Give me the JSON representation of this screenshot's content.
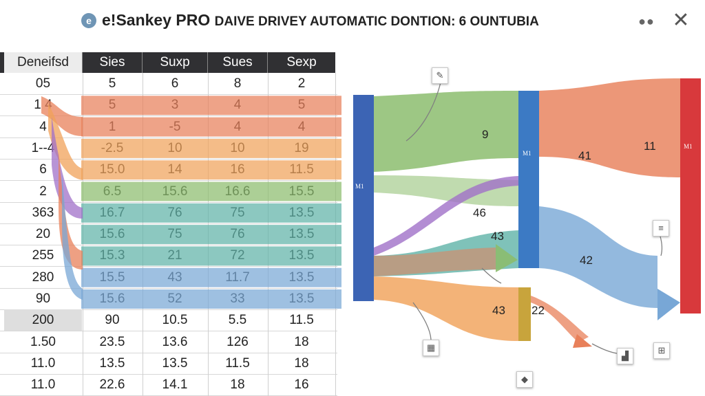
{
  "window": {
    "logo_letter": "e",
    "title": "e!Sankey PRO",
    "subtitle": "DAIVE DRIVEY AUTOMATIC  DONTION: 6 OUNTUBIA",
    "more_icon": "more-horizontal-icon",
    "close_icon": "close-icon"
  },
  "table": {
    "headers": [
      "Deneifsd",
      "Sies",
      "Suxp",
      "Sues",
      "Sexp"
    ],
    "rows": [
      [
        "05",
        "5",
        "6",
        "8",
        "2"
      ],
      [
        "1 4",
        "5",
        "3",
        "4",
        "5"
      ],
      [
        "4",
        "1",
        "-5",
        "4",
        "4"
      ],
      [
        "1--4",
        "-2.5",
        "10",
        "10",
        "19"
      ],
      [
        "6",
        "15.0",
        "14",
        "16",
        "11.5"
      ],
      [
        "2",
        "6.5",
        "15.6",
        "16.6",
        "15.5"
      ],
      [
        "363",
        "16.7",
        "76",
        "75",
        "13.5"
      ],
      [
        "20",
        "15.6",
        "75",
        "76",
        "13.5"
      ],
      [
        "255",
        "15.3",
        "21",
        "72",
        "13.5"
      ],
      [
        "280",
        "15.5",
        "43",
        "11.7",
        "13.5"
      ],
      [
        "90",
        "15.6",
        "52",
        "33",
        "13.5"
      ],
      [
        "200",
        "90",
        "10.5",
        "5.5",
        "11.5"
      ],
      [
        "1.50",
        "23.5",
        "13.6",
        "126",
        "18"
      ],
      [
        "11.0",
        "13.5",
        "13.5",
        "11.5",
        "18"
      ],
      [
        "11.0",
        "22.6",
        "14.1",
        "18",
        "16"
      ]
    ],
    "selected_row": 11
  },
  "sankey": {
    "flow_labels": [
      "9",
      "41",
      "11",
      "46",
      "43",
      "42",
      "43",
      "22"
    ],
    "node_labels": [
      "M1",
      "M1",
      "M1"
    ],
    "band_colors": [
      "#e8805a",
      "#f0a25a",
      "#8cbd6e",
      "#5fb3a8",
      "#78a7d6",
      "#a070c8"
    ],
    "icons": [
      "pencil-tool-icon",
      "list-icon",
      "grid-icon",
      "chart-icon",
      "layout-icon",
      "palette-icon"
    ]
  }
}
